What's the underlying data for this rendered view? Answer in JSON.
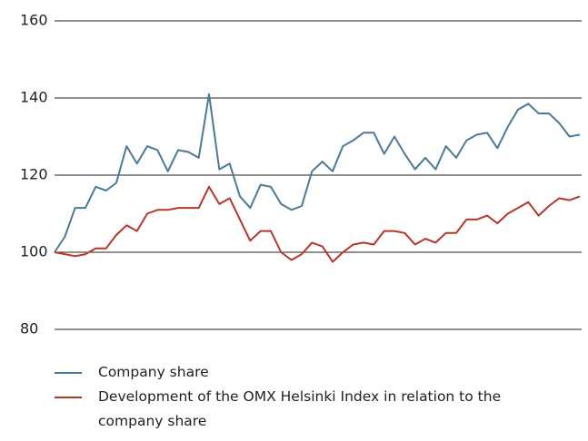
{
  "chart_data": {
    "type": "line",
    "categories": [
      null,
      null,
      null,
      null,
      null,
      null,
      null,
      null,
      null,
      null,
      null,
      null,
      null,
      null,
      null,
      null,
      null,
      null,
      null,
      null,
      null,
      null,
      null,
      null,
      null,
      null,
      null,
      null,
      null,
      null,
      null,
      null,
      null,
      null,
      null,
      null,
      null,
      null,
      null,
      null,
      null,
      null,
      null,
      null,
      null,
      null,
      null,
      null,
      null,
      null,
      null,
      null
    ],
    "series": [
      {
        "name": "Company share",
        "color": "#4a7a96",
        "values": [
          100,
          104,
          111.5,
          111.5,
          117,
          116,
          118,
          127.5,
          123,
          127.5,
          126.5,
          121,
          126.5,
          126,
          124.5,
          141,
          121.5,
          123,
          114.5,
          111.5,
          117.5,
          117,
          112.5,
          111,
          112,
          121,
          123.5,
          121,
          127.5,
          129,
          131,
          131,
          125.5,
          130,
          125.5,
          121.5,
          124.5,
          121.5,
          127.5,
          124.5,
          129,
          130.5,
          131,
          127,
          132.5,
          137,
          138.5,
          136,
          136,
          133.5,
          130,
          130.5
        ]
      },
      {
        "name": "Development of the OMX Helsinki Index in relation to the company share",
        "color": "#b5362a",
        "values": [
          100,
          99.5,
          99,
          99.5,
          101,
          101,
          104.5,
          107,
          105.5,
          110,
          111,
          111,
          111.5,
          111.5,
          111.5,
          117,
          112.5,
          114,
          108.5,
          103,
          105.5,
          105.5,
          100,
          98,
          99.5,
          102.5,
          101.5,
          97.5,
          100,
          102,
          102.5,
          102,
          105.5,
          105.5,
          105,
          102,
          103.5,
          102.5,
          105,
          105,
          108.5,
          108.5,
          109.5,
          107.5,
          110,
          111.5,
          113,
          109.5,
          112,
          114,
          113.5,
          114.5
        ]
      }
    ],
    "ylim": [
      80,
      160
    ],
    "yticks": [
      80,
      100,
      120,
      140,
      160
    ],
    "grid": true
  }
}
